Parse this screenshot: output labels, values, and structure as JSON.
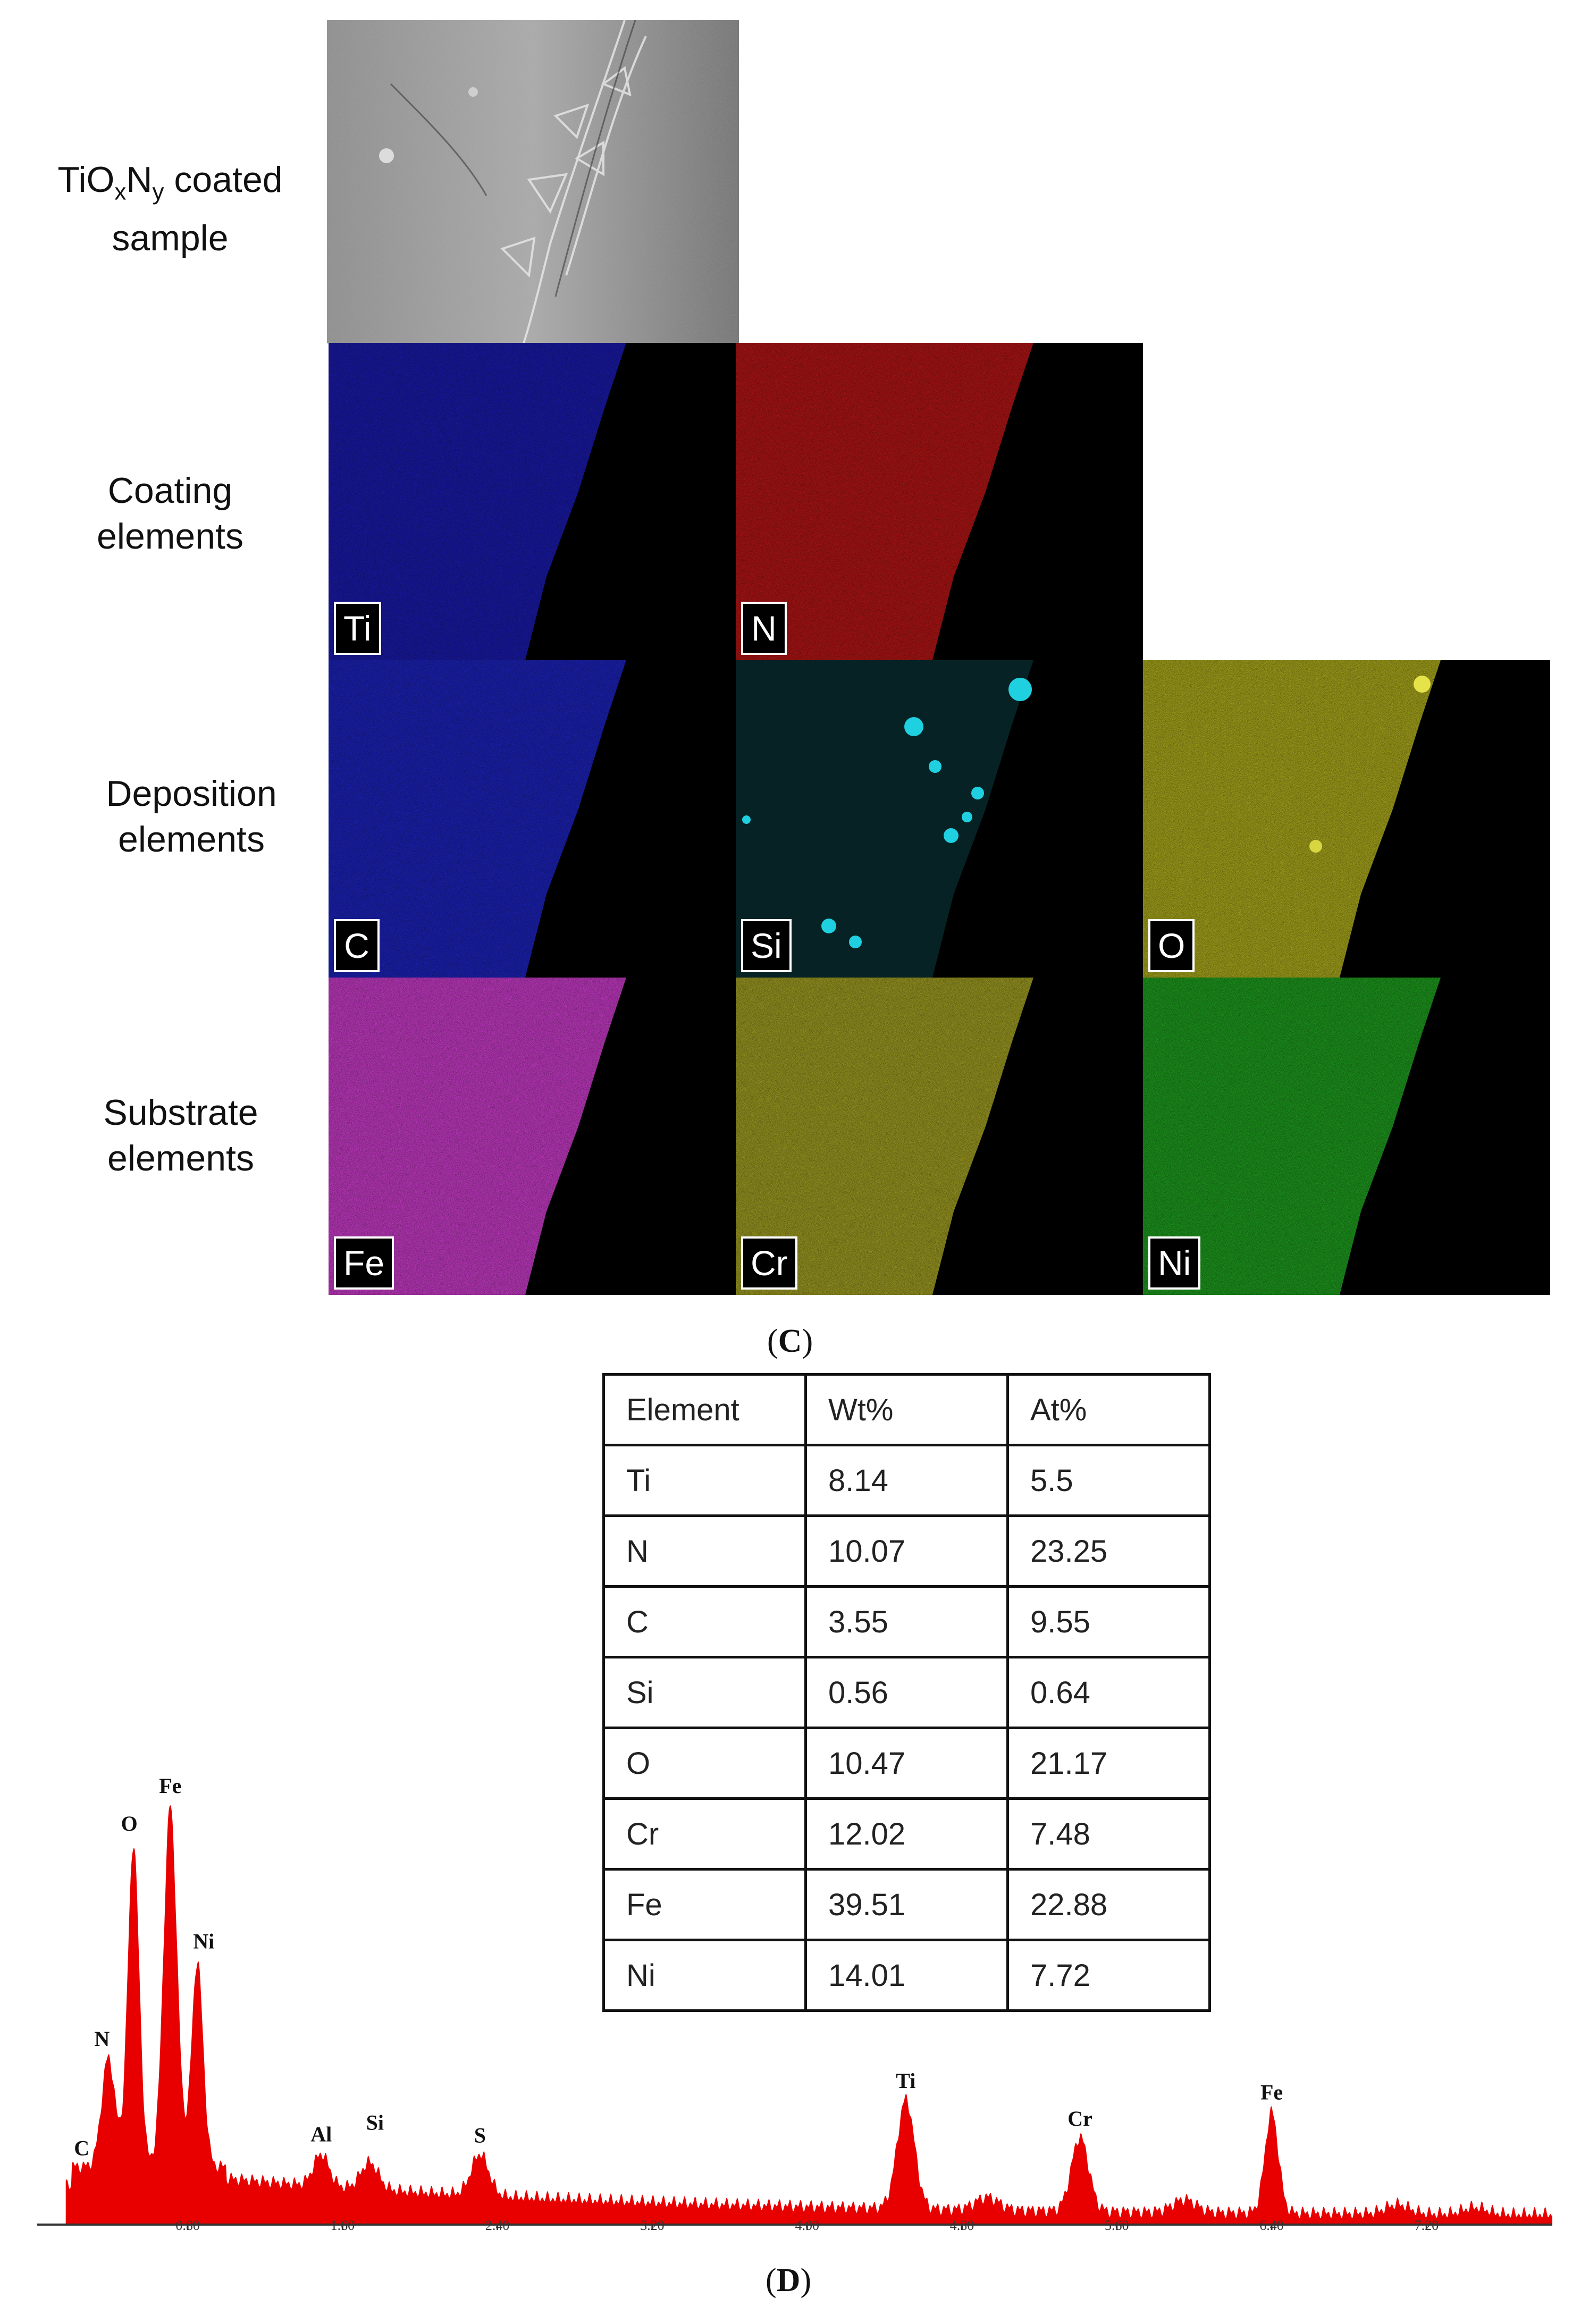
{
  "panel_c": {
    "caption_open": "(",
    "caption_letter": "C",
    "caption_close": ")",
    "rows": [
      {
        "label_lines": [
          "TiOxNy coated",
          "sample"
        ],
        "label_main": "TiO",
        "sub1": "x",
        "mid": "N",
        "sub2": "y",
        "label_rest": " coated",
        "line2": "sample"
      },
      {
        "line1": "Coating",
        "line2": "elements"
      },
      {
        "line1": "Deposition",
        "line2": "elements"
      },
      {
        "line1": "Substrate",
        "line2": "elements"
      }
    ],
    "maps": [
      {
        "element": "Ti",
        "color": "#1a1aa8"
      },
      {
        "element": "N",
        "color": "#b01515"
      },
      {
        "element": "C",
        "color": "#1c22b6"
      },
      {
        "element": "Si",
        "color": "#1ed0e0"
      },
      {
        "element": "O",
        "color": "#a7a61c"
      },
      {
        "element": "Fe",
        "color": "#c43ac4"
      },
      {
        "element": "Cr",
        "color": "#9c9a22"
      },
      {
        "element": "Ni",
        "color": "#1e9a1e"
      }
    ]
  },
  "table": {
    "headers": [
      "Element",
      "Wt%",
      "At%"
    ],
    "rows": [
      [
        "Ti",
        "8.14",
        "5.5"
      ],
      [
        "N",
        "10.07",
        "23.25"
      ],
      [
        "C",
        "3.55",
        "9.55"
      ],
      [
        "Si",
        "0.56",
        "0.64"
      ],
      [
        "O",
        "10.47",
        "21.17"
      ],
      [
        "Cr",
        "12.02",
        "7.48"
      ],
      [
        "Fe",
        "39.51",
        "22.88"
      ],
      [
        "Ni",
        "14.01",
        "7.72"
      ]
    ]
  },
  "panel_d": {
    "caption_open": "(",
    "caption_letter": "D",
    "caption_close": ")"
  },
  "chart_data": {
    "type": "area",
    "x_ticks": [
      "0.80",
      "1.60",
      "2.40",
      "3.20",
      "4.00",
      "4.80",
      "5.60",
      "6.40",
      "7.20"
    ],
    "x_tick_values": [
      0.8,
      1.6,
      2.4,
      3.2,
      4.0,
      4.8,
      5.6,
      6.4,
      7.2
    ],
    "xlim": [
      0.05,
      7.85
    ],
    "ylim": [
      0,
      100
    ],
    "fill_color": "#e80000",
    "peaks": [
      {
        "label": "C",
        "x": 0.28,
        "height": 14
      },
      {
        "label": "N",
        "x": 0.39,
        "height": 40
      },
      {
        "label": "O",
        "x": 0.52,
        "height": 91
      },
      {
        "label": "Fe",
        "x": 0.71,
        "height": 100
      },
      {
        "label": "Ni",
        "x": 0.85,
        "height": 63
      },
      {
        "label": "Al",
        "x": 1.49,
        "height": 17
      },
      {
        "label": "Si",
        "x": 1.74,
        "height": 15
      },
      {
        "label": "S",
        "x": 2.31,
        "height": 17
      },
      {
        "label": "Ti",
        "x": 4.51,
        "height": 30
      },
      {
        "label": "Cr",
        "x": 5.41,
        "height": 21
      },
      {
        "label": "Fe",
        "x": 6.4,
        "height": 27
      }
    ]
  }
}
